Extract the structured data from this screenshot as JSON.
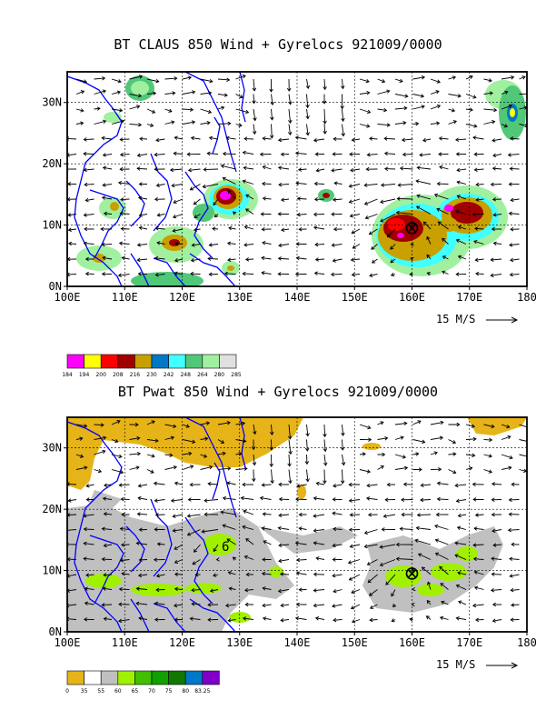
{
  "chart_data": [
    {
      "type": "map",
      "title": "BT CLAUS 850 Wind + Gyrelocs 921009/0000",
      "x_ticks": [
        "100E",
        "110E",
        "120E",
        "130E",
        "140E",
        "150E",
        "160E",
        "170E",
        "180"
      ],
      "y_ticks": [
        "0N",
        "10N",
        "20N",
        "30N"
      ],
      "xlim": [
        100,
        180
      ],
      "ylim": [
        0,
        35
      ],
      "reference_vector": "15 M/S",
      "gyre_loc": {
        "lon": 160,
        "lat": 9.5
      },
      "colorbar": {
        "labels": [
          "184",
          "194",
          "200",
          "208",
          "216",
          "230",
          "242",
          "248",
          "264",
          "280",
          "285"
        ],
        "colors": [
          "#ff00ff",
          "#ffff00",
          "#ff0000",
          "#a00000",
          "#c8a000",
          "#0078c8",
          "#40ffff",
          "#50c878",
          "#a0f0a0",
          "#e0e0e0"
        ]
      }
    },
    {
      "type": "map",
      "title": "BT Pwat 850 Wind + Gyrelocs 921009/0000",
      "x_ticks": [
        "100E",
        "110E",
        "120E",
        "130E",
        "140E",
        "150E",
        "160E",
        "170E",
        "180"
      ],
      "y_ticks": [
        "0N",
        "10N",
        "20N",
        "30N"
      ],
      "xlim": [
        100,
        180
      ],
      "ylim": [
        0,
        35
      ],
      "reference_vector": "15 M/S",
      "gyre_loc": {
        "lon": 160,
        "lat": 9.5
      },
      "colorbar": {
        "labels": [
          "0",
          "35",
          "55",
          "60",
          "65",
          "70",
          "75",
          "80",
          "83.25"
        ],
        "colors": [
          "#e6b418",
          "#ffffff",
          "#c0c0c0",
          "#a0f000",
          "#40c000",
          "#10a000",
          "#107800",
          "#0078c8",
          "#8000c8"
        ]
      }
    }
  ]
}
